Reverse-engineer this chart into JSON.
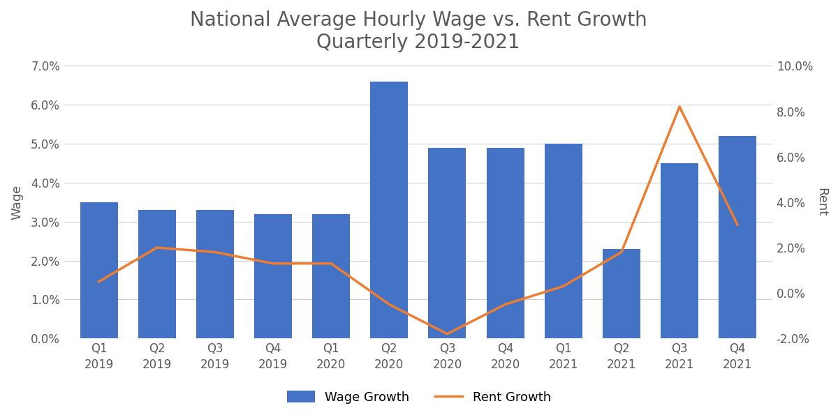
{
  "title": "National Average Hourly Wage vs. Rent Growth\nQuarterly 2019-2021",
  "categories": [
    "Q1\n2019",
    "Q2\n2019",
    "Q3\n2019",
    "Q4\n2019",
    "Q1\n2020",
    "Q2\n2020",
    "Q3\n2020",
    "Q4\n2020",
    "Q1\n2021",
    "Q2\n2021",
    "Q3\n2021",
    "Q4\n2021"
  ],
  "wage_growth": [
    0.035,
    0.033,
    0.033,
    0.032,
    0.032,
    0.066,
    0.049,
    0.049,
    0.05,
    0.023,
    0.045,
    0.052
  ],
  "rent_growth": [
    0.005,
    0.02,
    0.018,
    0.013,
    0.013,
    -0.005,
    -0.018,
    -0.005,
    0.003,
    0.018,
    0.082,
    0.03
  ],
  "bar_color": "#4472C4",
  "line_color": "#ED7D31",
  "wage_ylabel": "Wage",
  "rent_ylabel": "Rent",
  "wage_ylim": [
    0.0,
    0.07
  ],
  "rent_ylim": [
    -0.02,
    0.1
  ],
  "wage_yticks": [
    0.0,
    0.01,
    0.02,
    0.03,
    0.04,
    0.05,
    0.06,
    0.07
  ],
  "rent_yticks": [
    -0.02,
    0.0,
    0.02,
    0.04,
    0.06,
    0.08,
    0.1
  ],
  "legend_wage": "Wage Growth",
  "legend_rent": "Rent Growth",
  "title_fontsize": 20,
  "label_fontsize": 13,
  "tick_fontsize": 12,
  "legend_fontsize": 13,
  "background_color": "#FFFFFF",
  "grid_color": "#CCCCCC",
  "text_color": "#595959"
}
